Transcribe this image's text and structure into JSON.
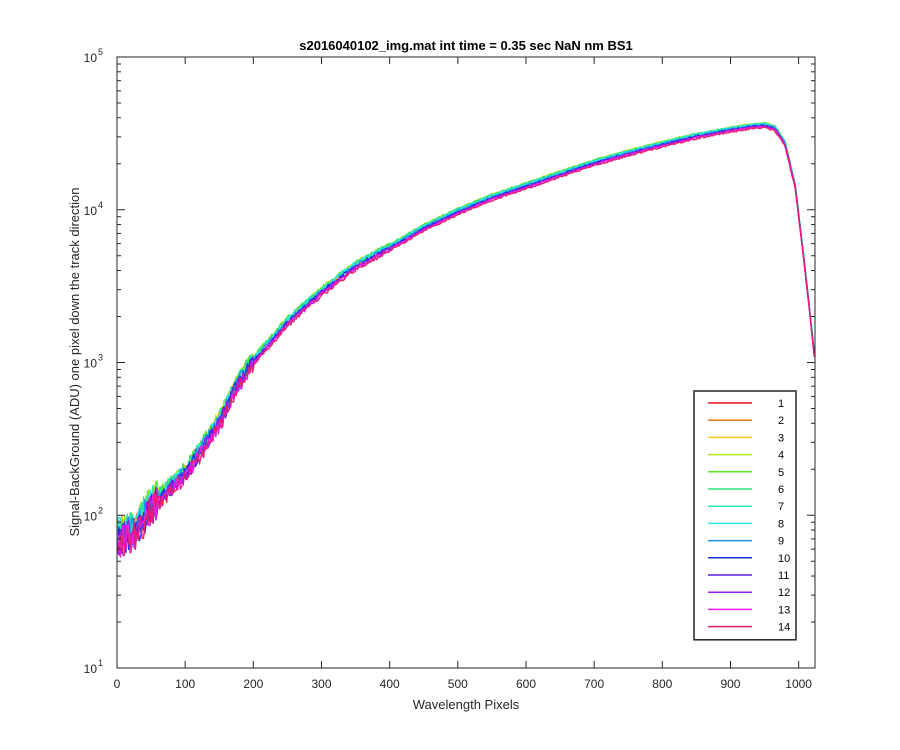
{
  "chart_data": {
    "type": "line",
    "title": "s2016040102_img.mat int time = 0.35 sec  NaN nm BS1",
    "xlabel": "Wavelength Pixels",
    "ylabel": "Signal-BackGround (ADU) one pixel down the track direction",
    "xlim": [
      0,
      1024
    ],
    "ylim": [
      10,
      100000
    ],
    "yscale": "log",
    "x_ticks": [
      "0",
      "100",
      "200",
      "300",
      "400",
      "500",
      "600",
      "700",
      "800",
      "900",
      "1000"
    ],
    "y_ticks": [
      {
        "base": "10",
        "exp": "1"
      },
      {
        "base": "10",
        "exp": "2"
      },
      {
        "base": "10",
        "exp": "3"
      },
      {
        "base": "10",
        "exp": "4"
      },
      {
        "base": "10",
        "exp": "5"
      }
    ],
    "grid": false,
    "legend_position": "bottom-right",
    "x": [
      0,
      25,
      50,
      75,
      100,
      125,
      150,
      175,
      200,
      250,
      300,
      350,
      400,
      450,
      500,
      550,
      600,
      650,
      700,
      750,
      800,
      850,
      900,
      930,
      950,
      965,
      980,
      995,
      1005,
      1015,
      1024
    ],
    "series": [
      {
        "name": "1",
        "color": "#e6141e",
        "values": [
          75,
          82,
          118,
          152,
          195,
          285,
          420,
          720,
          1050,
          1900,
          3000,
          4400,
          5800,
          7800,
          9900,
          12200,
          14500,
          17300,
          20500,
          23700,
          27000,
          30500,
          33500,
          35000,
          35500,
          34000,
          27000,
          14000,
          6000,
          2400,
          1000
        ]
      },
      {
        "name": "2",
        "color": "#f07814",
        "values": [
          74,
          81,
          117,
          151,
          193,
          282,
          415,
          712,
          1040,
          1880,
          2970,
          4370,
          5750,
          7740,
          9800,
          12100,
          14400,
          17200,
          20300,
          23500,
          26800,
          30200,
          33200,
          34800,
          35300,
          33800,
          26800,
          13900,
          5900,
          2380,
          990
        ]
      },
      {
        "name": "3",
        "color": "#f5c814",
        "values": [
          76,
          83,
          120,
          155,
          198,
          290,
          428,
          735,
          1070,
          1930,
          3040,
          4470,
          5880,
          7900,
          10000,
          12400,
          14700,
          17500,
          20800,
          24000,
          27400,
          31000,
          34000,
          35600,
          36100,
          34600,
          27500,
          14300,
          6100,
          2450,
          1020
        ]
      },
      {
        "name": "4",
        "color": "#b4e61e",
        "values": [
          78,
          84,
          122,
          158,
          202,
          296,
          438,
          750,
          1090,
          1960,
          3080,
          4520,
          5950,
          8000,
          10200,
          12600,
          15000,
          17900,
          21200,
          24500,
          27900,
          31600,
          34700,
          36400,
          37000,
          35400,
          28200,
          14700,
          6300,
          2520,
          1050
        ]
      },
      {
        "name": "5",
        "color": "#5ae628",
        "values": [
          77,
          84,
          121,
          157,
          200,
          294,
          434,
          745,
          1085,
          1950,
          3060,
          4500,
          5930,
          7970,
          10150,
          12550,
          14900,
          17800,
          21100,
          24400,
          27800,
          31400,
          34500,
          36200,
          36800,
          35200,
          28000,
          14600,
          6200,
          2500,
          1040
        ]
      },
      {
        "name": "6",
        "color": "#28e678",
        "values": [
          76,
          83,
          120,
          156,
          199,
          292,
          431,
          740,
          1078,
          1940,
          3050,
          4480,
          5900,
          7930,
          10100,
          12500,
          14850,
          17700,
          21000,
          24300,
          27700,
          31300,
          34400,
          36100,
          36700,
          35100,
          27900,
          14550,
          6180,
          2490,
          1035
        ]
      },
      {
        "name": "7",
        "color": "#28e6b4",
        "values": [
          75,
          82,
          119,
          154,
          197,
          289,
          427,
          733,
          1068,
          1925,
          3030,
          4450,
          5860,
          7880,
          10050,
          12430,
          14780,
          17600,
          20900,
          24200,
          27600,
          31200,
          34300,
          36000,
          36600,
          35000,
          27800,
          14500,
          6150,
          2480,
          1030
        ]
      },
      {
        "name": "8",
        "color": "#28e6f0",
        "values": [
          74,
          80,
          117,
          152,
          194,
          285,
          421,
          724,
          1055,
          1905,
          3000,
          4410,
          5810,
          7820,
          9970,
          12330,
          14660,
          17480,
          20750,
          24000,
          27400,
          31000,
          34100,
          35800,
          36400,
          34800,
          27700,
          14450,
          6130,
          2470,
          1025
        ]
      },
      {
        "name": "9",
        "color": "#1e96e6",
        "values": [
          72,
          78,
          114,
          148,
          189,
          278,
          411,
          707,
          1032,
          1865,
          2940,
          4330,
          5710,
          7690,
          9810,
          12140,
          14440,
          17220,
          20460,
          23680,
          27050,
          30620,
          33700,
          35400,
          36000,
          34400,
          27400,
          14300,
          6070,
          2450,
          1015
        ]
      },
      {
        "name": "10",
        "color": "#1432dc",
        "values": [
          70,
          76,
          111,
          144,
          184,
          271,
          401,
          690,
          1008,
          1825,
          2880,
          4250,
          5610,
          7560,
          9650,
          11950,
          14220,
          16960,
          20160,
          23350,
          26700,
          30240,
          33300,
          35000,
          35600,
          34000,
          27100,
          14150,
          6010,
          2430,
          1005
        ]
      },
      {
        "name": "11",
        "color": "#5a1ee6",
        "values": [
          69,
          75,
          110,
          143,
          182,
          268,
          397,
          683,
          998,
          1810,
          2860,
          4220,
          5570,
          7510,
          9590,
          11880,
          14140,
          16870,
          20060,
          23240,
          26580,
          30110,
          33160,
          34860,
          35460,
          33880,
          27000,
          14100,
          5990,
          2420,
          1000
        ]
      },
      {
        "name": "12",
        "color": "#a01ee6",
        "values": [
          68,
          74,
          108,
          141,
          180,
          265,
          392,
          675,
          987,
          1790,
          2830,
          4180,
          5520,
          7440,
          9510,
          11780,
          14030,
          16740,
          19910,
          23070,
          26390,
          29900,
          32940,
          34630,
          35230,
          33660,
          26830,
          14010,
          5950,
          2400,
          995
        ]
      },
      {
        "name": "13",
        "color": "#f01ee6",
        "values": [
          67,
          73,
          107,
          139,
          177,
          261,
          386,
          665,
          973,
          1765,
          2790,
          4120,
          5450,
          7350,
          9390,
          11640,
          13860,
          16540,
          19680,
          22810,
          26100,
          29580,
          32600,
          34280,
          34880,
          33330,
          26570,
          13880,
          5900,
          2380,
          990
        ]
      },
      {
        "name": "14",
        "color": "#e61e6e",
        "values": [
          66,
          72,
          105,
          137,
          174,
          256,
          379,
          652,
          955,
          1735,
          2745,
          4060,
          5370,
          7250,
          9270,
          11490,
          13690,
          16340,
          19450,
          22550,
          25810,
          29260,
          32250,
          33920,
          34520,
          32990,
          26300,
          13750,
          5850,
          2360,
          985
        ]
      }
    ]
  }
}
